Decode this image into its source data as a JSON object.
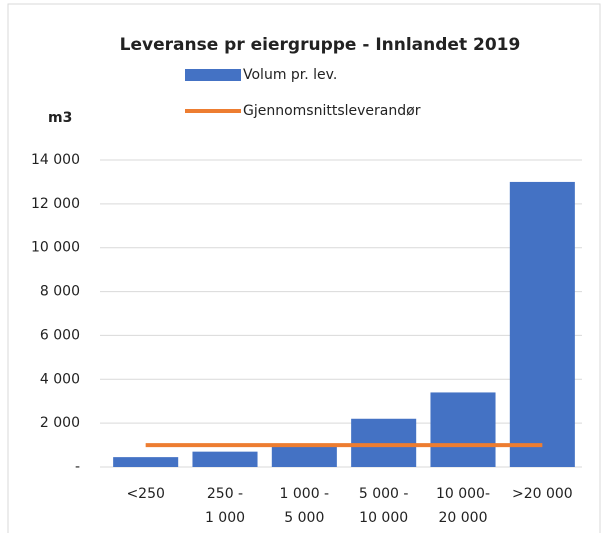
{
  "chart_data": {
    "type": "bar_line",
    "title": "Leveranse pr eiergruppe - Innlandet 2019",
    "y_label": "m3",
    "categories": [
      [
        "<250"
      ],
      [
        "250 -",
        "1 000"
      ],
      [
        "1 000 -",
        "5 000"
      ],
      [
        "5 000 -",
        "10 000"
      ],
      [
        "10 000-",
        "20 000"
      ],
      [
        ">20 000"
      ]
    ],
    "series": [
      {
        "name": "Volum pr. lev.",
        "type": "bar",
        "color": "#4472c4",
        "values": [
          450,
          700,
          950,
          2200,
          3400,
          13000
        ]
      },
      {
        "name": "Gjennomsnittsleverandør",
        "type": "line",
        "color": "#ed7d31",
        "values": [
          1000,
          1000,
          1000,
          1000,
          1000,
          1000
        ]
      }
    ],
    "ylim": [
      0,
      14000
    ],
    "yticks": [
      {
        "value": 0,
        "label": "-"
      },
      {
        "value": 2000,
        "label": "2 000"
      },
      {
        "value": 4000,
        "label": "4 000"
      },
      {
        "value": 6000,
        "label": "6 000"
      },
      {
        "value": 8000,
        "label": "8 000"
      },
      {
        "value": 10000,
        "label": "10 000"
      },
      {
        "value": 12000,
        "label": "12 000"
      },
      {
        "value": 14000,
        "label": "14 000"
      }
    ],
    "grid": true
  }
}
